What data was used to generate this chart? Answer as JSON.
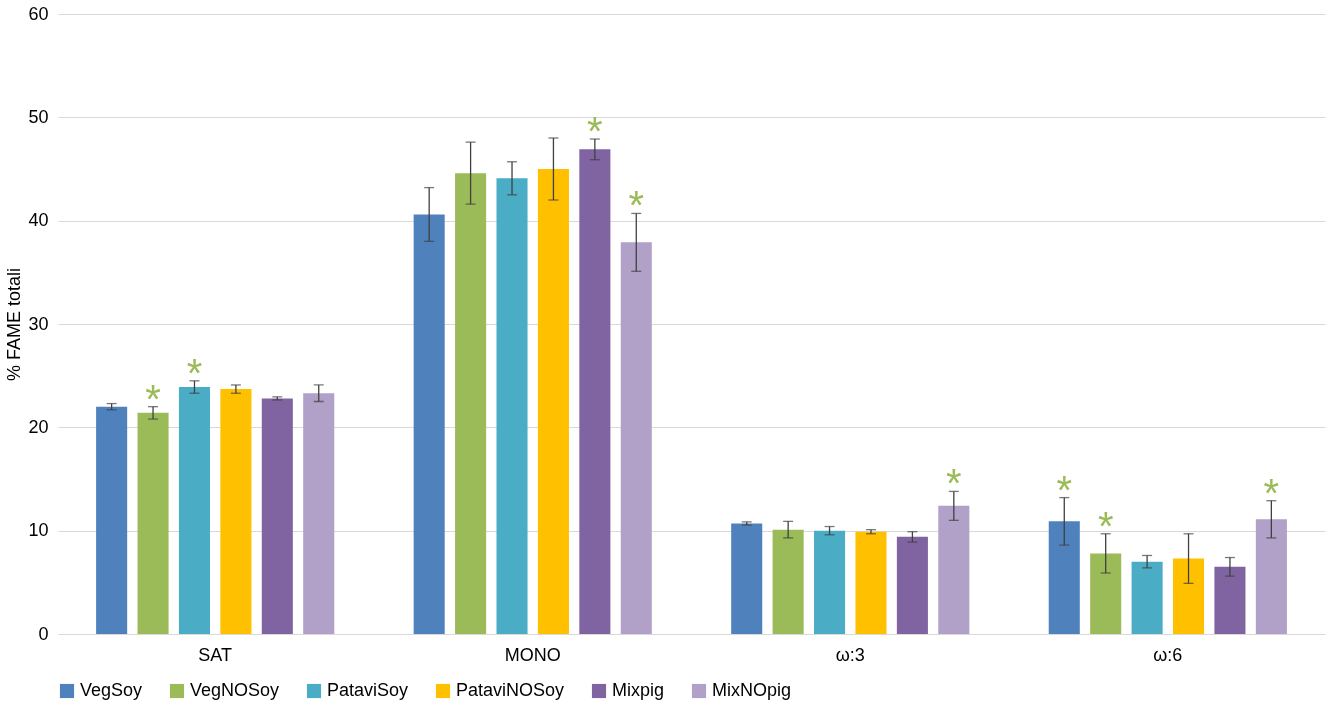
{
  "chart_data": {
    "type": "bar",
    "ylabel": "% FAME totali",
    "categories": [
      "SAT",
      "MONO",
      "ω:3",
      "ω:6"
    ],
    "series": [
      {
        "name": "VegSoy",
        "color": "#4f81bd",
        "values": [
          22.0,
          40.6,
          10.7,
          10.9
        ],
        "errors": [
          0.3,
          2.6,
          0.15,
          2.3
        ],
        "value_labels": [
          null,
          null,
          null,
          "*"
        ]
      },
      {
        "name": "VegNOSoy",
        "color": "#9bbb59",
        "values": [
          21.4,
          44.6,
          10.1,
          7.8
        ],
        "errors": [
          0.6,
          3.0,
          0.8,
          1.9
        ],
        "value_labels": [
          "*",
          null,
          null,
          "*"
        ]
      },
      {
        "name": "PataviSoy",
        "color": "#4bacc6",
        "values": [
          23.9,
          44.1,
          10.0,
          7.0
        ],
        "errors": [
          0.6,
          1.6,
          0.4,
          0.6
        ],
        "value_labels": [
          "*",
          null,
          null,
          null
        ]
      },
      {
        "name": "PataviNOSoy",
        "color": "#ffc000",
        "values": [
          23.7,
          45.0,
          9.9,
          7.3
        ],
        "errors": [
          0.4,
          3.0,
          0.2,
          2.4
        ]
      },
      {
        "name": "Mixpig",
        "color": "#8064a2",
        "values": [
          22.8,
          46.9,
          9.4,
          6.5
        ],
        "errors": [
          0.15,
          1.0,
          0.5,
          0.9
        ],
        "value_labels": [
          null,
          "*",
          null,
          null
        ]
      },
      {
        "name": "MixNOpig",
        "color": "#b1a0c7",
        "values": [
          23.3,
          37.9,
          12.4,
          11.1
        ],
        "errors": [
          0.8,
          2.8,
          1.4,
          1.8
        ],
        "value_labels": [
          null,
          "*",
          "*",
          "*"
        ]
      }
    ],
    "ylim": [
      0,
      60
    ],
    "yticks": [
      0,
      10,
      20,
      30,
      40,
      50,
      60
    ],
    "grid": "y",
    "legend": "bottom"
  }
}
